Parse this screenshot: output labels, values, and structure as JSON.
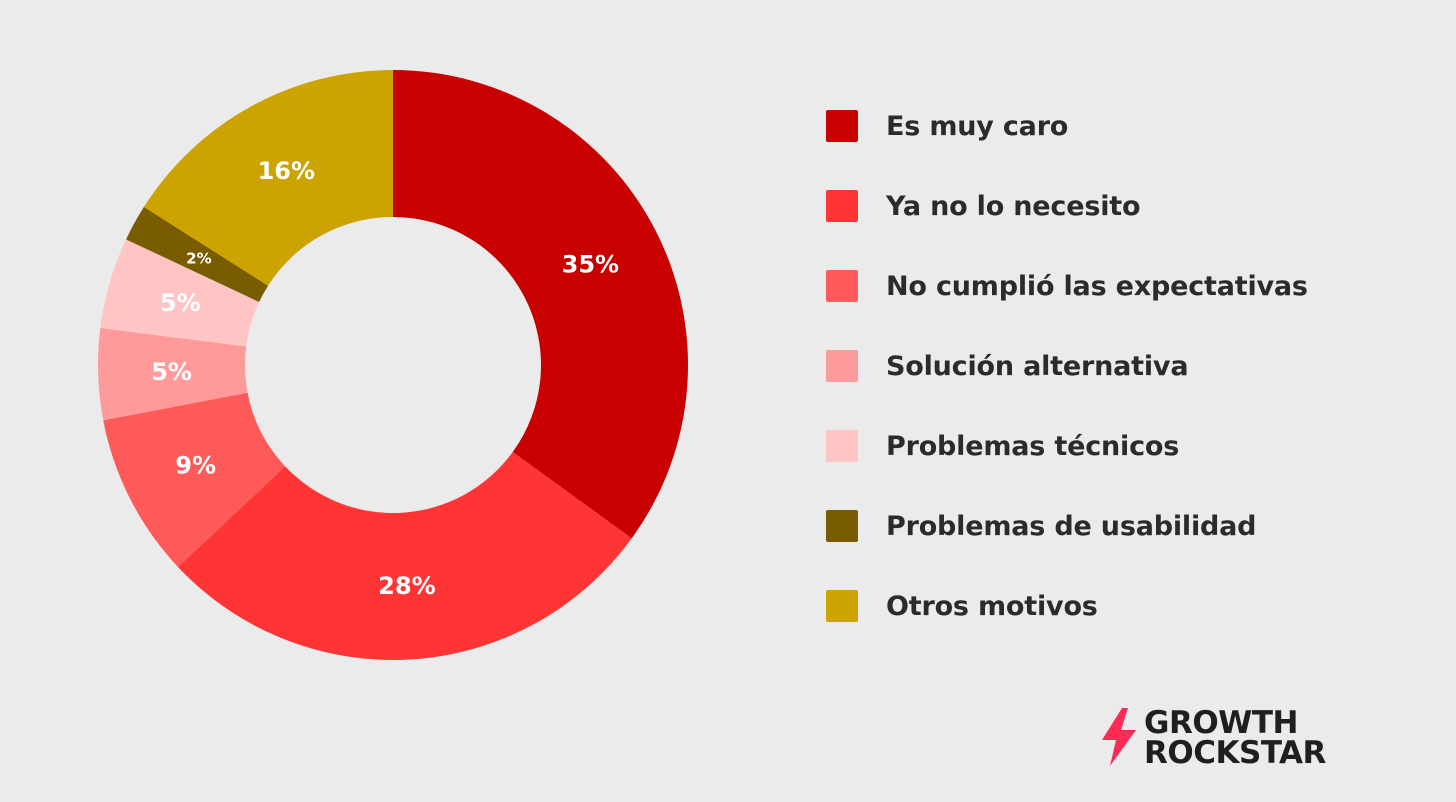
{
  "chart_data": {
    "type": "pie",
    "donut": true,
    "title": "",
    "slices": [
      {
        "label": "Es muy caro",
        "value": 35,
        "display": "35%",
        "color": "#c90000"
      },
      {
        "label": "Ya no lo necesito",
        "value": 28,
        "display": "28%",
        "color": "#ff3434"
      },
      {
        "label": "No cumplió las expectativas",
        "value": 9,
        "display": "9%",
        "color": "#ff5a5a"
      },
      {
        "label": "Solución alternativa",
        "value": 5,
        "display": "5%",
        "color": "#ff9a9a"
      },
      {
        "label": "Problemas técnicos",
        "value": 5,
        "display": "5%",
        "color": "#ffc4c4"
      },
      {
        "label": "Problemas de usabilidad",
        "value": 2,
        "display": "2%",
        "color": "#7a5c00"
      },
      {
        "label": "Otros motivos",
        "value": 16,
        "display": "16%",
        "color": "#cca300"
      }
    ],
    "legend_position": "right"
  },
  "brand": {
    "line1": "GROWTH",
    "line2": "ROCKSTAR",
    "bolt_color": "#ff2a55",
    "icon": "lightning-bolt-icon"
  }
}
